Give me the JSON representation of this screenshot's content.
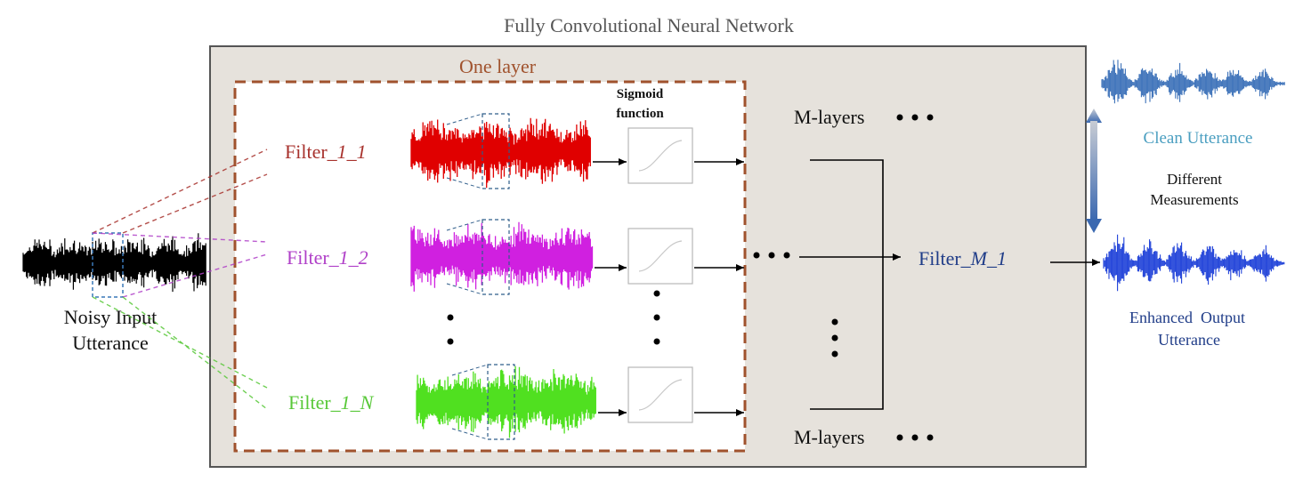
{
  "title": "Fully Convolutional Neural Network",
  "layer_label": "One layer",
  "sigmoid_label_line1": "Sigmoid",
  "sigmoid_label_line2": "function",
  "input_label_line1": "Noisy Input",
  "input_label_line2": "Utterance",
  "filters": [
    {
      "prefix": "Filter",
      "suffix": "_1_1",
      "color": "#a8322d",
      "wave_color": "#e00000"
    },
    {
      "prefix": "Filter",
      "suffix": "_1_2",
      "color": "#b040c8",
      "wave_color": "#d020e0"
    },
    {
      "prefix": "Filter",
      "suffix": "_1_N",
      "color": "#58c838",
      "wave_color": "#50e020"
    }
  ],
  "m_layers_top": "M-layers",
  "m_layers_bottom": "M-layers",
  "final_filter_prefix": "Filter",
  "final_filter_suffix": "_M_1",
  "clean_label": "Clean Utterance",
  "measure_line1": "Different",
  "measure_line2": "Measurements",
  "enhanced_line1": "Enhanced  Output",
  "enhanced_line2": "Utterance",
  "colors": {
    "panel_fill": "#e6e2dc",
    "panel_border": "#555555",
    "layer_dash": "#a0522d",
    "title": "#555555",
    "layer_text": "#a0522d",
    "final_filter": "#1f3c88",
    "clean_text": "#4a9ec0",
    "clean_wave": "#3a70b8",
    "enhanced_text": "#1f3c88",
    "enhanced_wave": "#1e40d8",
    "noisy_wave": "#000000",
    "arrow_light": "#c8ccd4",
    "arrow_dark": "#3a68b0"
  }
}
